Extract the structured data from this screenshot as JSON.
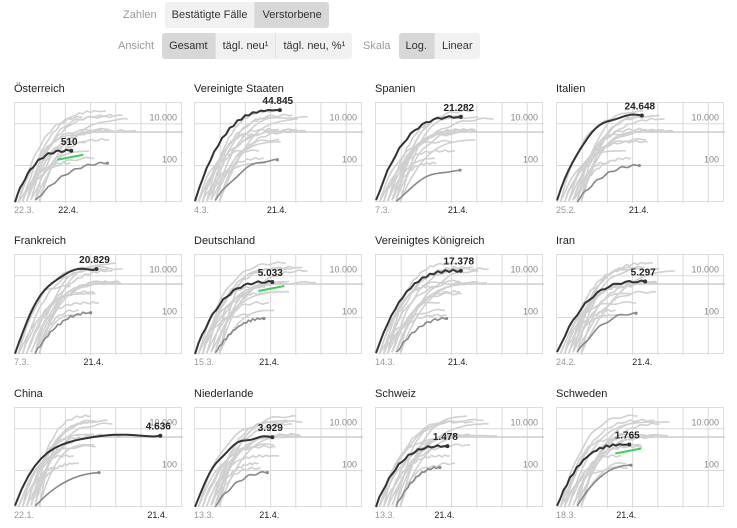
{
  "controls": {
    "zahlen_label": "Zahlen",
    "zahlen_options": [
      "Bestätigte Fälle",
      "Verstorbene"
    ],
    "zahlen_active": 1,
    "ansicht_label": "Ansicht",
    "ansicht_options": [
      "Gesamt",
      "tägl. neu¹",
      "tägl. neu, %¹"
    ],
    "ansicht_active": 0,
    "skala_label": "Skala",
    "skala_options": [
      "Log.",
      "Linear"
    ],
    "skala_active": 0
  },
  "colors": {
    "highlight": "#333333",
    "background_series": "#d0d0d0",
    "trend": "#39d353",
    "gridline": "#d9d9d9",
    "dark_tail": "#888888"
  },
  "chart_data": [
    {
      "type": "line",
      "title": "Österreich",
      "scale": "log",
      "y_ticks": [
        "10.000",
        "100"
      ],
      "x_start": "22.3.",
      "x_end": "22.4.",
      "last_value": 510,
      "last_label": "510",
      "trend_marker": true
    },
    {
      "type": "line",
      "title": "Vereinigte Staaten",
      "scale": "log",
      "y_ticks": [
        "10.000",
        "100"
      ],
      "x_start": "4.3.",
      "x_end": "21.4.",
      "last_value": 44845,
      "last_label": "44.845",
      "trend_marker": false
    },
    {
      "type": "line",
      "title": "Spanien",
      "scale": "log",
      "y_ticks": [
        "10.000",
        "100"
      ],
      "x_start": "7.3.",
      "x_end": "21.4.",
      "last_value": 21282,
      "last_label": "21.282",
      "trend_marker": false
    },
    {
      "type": "line",
      "title": "Italien",
      "scale": "log",
      "y_ticks": [
        "10.000",
        "100"
      ],
      "x_start": "25.2.",
      "x_end": "21.4.",
      "last_value": 24648,
      "last_label": "24.648",
      "trend_marker": false
    },
    {
      "type": "line",
      "title": "Frankreich",
      "scale": "log",
      "y_ticks": [
        "10.000",
        "100"
      ],
      "x_start": "7.3.",
      "x_end": "21.4.",
      "last_value": 20829,
      "last_label": "20.829",
      "trend_marker": false
    },
    {
      "type": "line",
      "title": "Deutschland",
      "scale": "log",
      "y_ticks": [
        "10.000",
        "100"
      ],
      "x_start": "15.3.",
      "x_end": "21.4.",
      "last_value": 5033,
      "last_label": "5.033",
      "trend_marker": true
    },
    {
      "type": "line",
      "title": "Vereinigtes Königreich",
      "scale": "log",
      "y_ticks": [
        "10.000",
        "100"
      ],
      "x_start": "14.3.",
      "x_end": "21.4.",
      "last_value": 17378,
      "last_label": "17.378",
      "trend_marker": false
    },
    {
      "type": "line",
      "title": "Iran",
      "scale": "log",
      "y_ticks": [
        "10.000",
        "100"
      ],
      "x_start": "24.2.",
      "x_end": "21.4.",
      "last_value": 5297,
      "last_label": "5.297",
      "trend_marker": false
    },
    {
      "type": "line",
      "title": "China",
      "scale": "log",
      "y_ticks": [
        "10.000",
        "100"
      ],
      "x_start": "22.1.",
      "x_end": "21.4.",
      "last_value": 4636,
      "last_label": "4.636",
      "trend_marker": false
    },
    {
      "type": "line",
      "title": "Niederlande",
      "scale": "log",
      "y_ticks": [
        "10.000",
        "100"
      ],
      "x_start": "13.3.",
      "x_end": "21.4.",
      "last_value": 3929,
      "last_label": "3.929",
      "trend_marker": false
    },
    {
      "type": "line",
      "title": "Schweiz",
      "scale": "log",
      "y_ticks": [
        "10.000",
        "100"
      ],
      "x_start": "13.3.",
      "x_end": "21.4.",
      "last_value": 1478,
      "last_label": "1.478",
      "trend_marker": false
    },
    {
      "type": "line",
      "title": "Schweden",
      "scale": "log",
      "y_ticks": [
        "10.000",
        "100"
      ],
      "x_start": "18.3.",
      "x_end": "21.4.",
      "last_value": 1765,
      "last_label": "1.765",
      "trend_marker": true
    }
  ]
}
